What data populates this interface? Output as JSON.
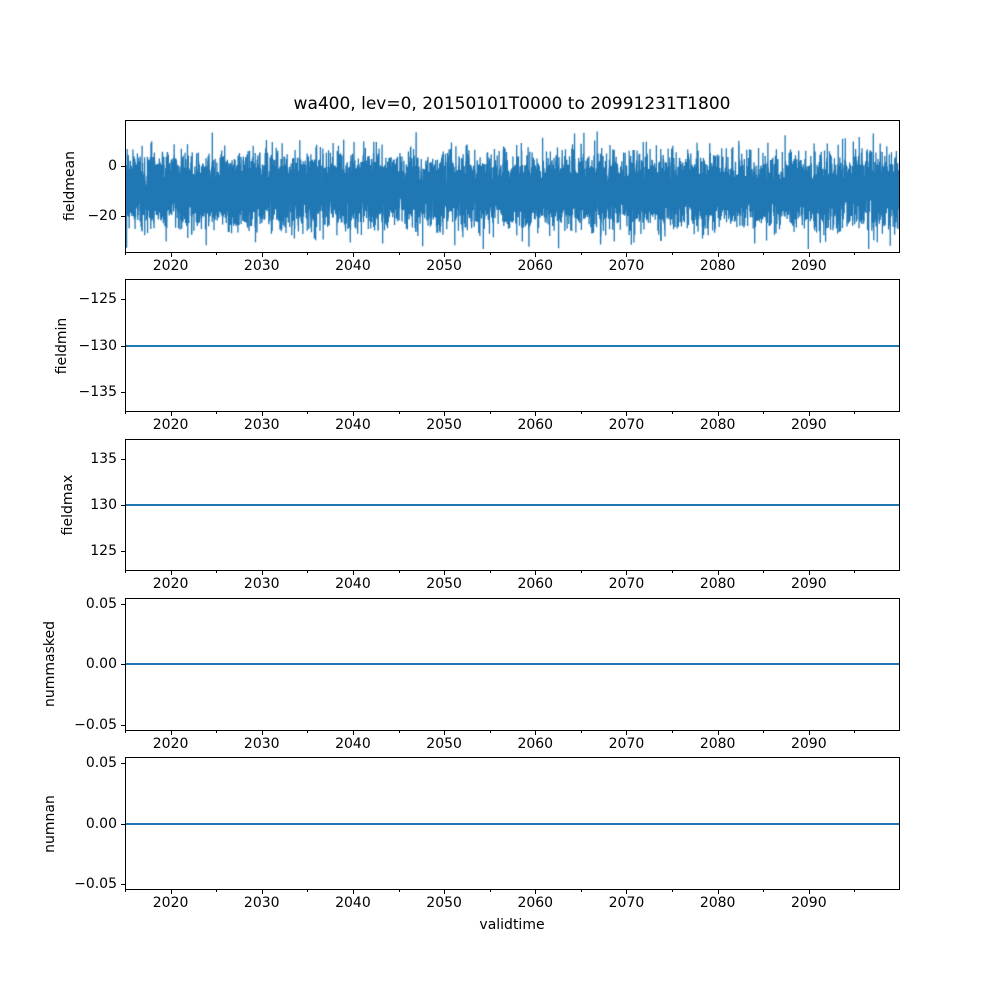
{
  "chart_data": {
    "type": "line",
    "title": "wa400, lev=0, 20150101T0000 to 20991231T1800",
    "field": "wa400",
    "level": "lev=0",
    "time_start": "20150101T0000",
    "time_end": "20991231T1800",
    "xlabel": "validtime",
    "line_color": "#1f77b4",
    "axis_color": "#000000",
    "background_color": "#ffffff",
    "grid": false,
    "legend": false,
    "x_range": [
      2015,
      2100
    ],
    "x_major_ticks": [
      {
        "value": 2020,
        "label": "2020"
      },
      {
        "value": 2030,
        "label": "2030"
      },
      {
        "value": 2040,
        "label": "2040"
      },
      {
        "value": 2050,
        "label": "2050"
      },
      {
        "value": 2060,
        "label": "2060"
      },
      {
        "value": 2070,
        "label": "2070"
      },
      {
        "value": 2080,
        "label": "2080"
      },
      {
        "value": 2090,
        "label": "2090"
      }
    ],
    "x_minor_ticks": [
      2015,
      2025,
      2035,
      2045,
      2055,
      2065,
      2075,
      2085,
      2095
    ],
    "subplots": [
      {
        "ylabel": "fieldmean",
        "ylim": [
          -34.7,
          18.4
        ],
        "yticks": [
          {
            "value": 0,
            "label": "0"
          },
          {
            "value": -20,
            "label": "−20"
          }
        ],
        "series": {
          "kind": "noise",
          "approx_mean": -10,
          "approx_std": 7,
          "approx_min": -33.5,
          "approx_max": 16.2,
          "points": 12000,
          "seed": 42
        },
        "ylabel_x": 70
      },
      {
        "ylabel": "fieldmin",
        "ylim": [
          -137.15,
          -122.85
        ],
        "yticks": [
          {
            "value": -125,
            "label": "−125"
          },
          {
            "value": -130,
            "label": "−130"
          },
          {
            "value": -135,
            "label": "−135"
          }
        ],
        "series": {
          "kind": "constant",
          "value": -130
        },
        "ylabel_x": 62
      },
      {
        "ylabel": "fieldmax",
        "ylim": [
          122.85,
          137.15
        ],
        "yticks": [
          {
            "value": 135,
            "label": "135"
          },
          {
            "value": 130,
            "label": "130"
          },
          {
            "value": 125,
            "label": "125"
          }
        ],
        "series": {
          "kind": "constant",
          "value": 130
        },
        "ylabel_x": 68
      },
      {
        "ylabel": "nummasked",
        "ylim": [
          -0.055,
          0.055
        ],
        "yticks": [
          {
            "value": 0.05,
            "label": "0.05"
          },
          {
            "value": 0.0,
            "label": "0.00"
          },
          {
            "value": -0.05,
            "label": "−0.05"
          }
        ],
        "series": {
          "kind": "constant",
          "value": 0
        },
        "ylabel_x": 50
      },
      {
        "ylabel": "numnan",
        "ylim": [
          -0.055,
          0.055
        ],
        "yticks": [
          {
            "value": 0.05,
            "label": "0.05"
          },
          {
            "value": 0.0,
            "label": "0.00"
          },
          {
            "value": -0.05,
            "label": "−0.05"
          }
        ],
        "series": {
          "kind": "constant",
          "value": 0
        },
        "ylabel_x": 50
      }
    ]
  }
}
